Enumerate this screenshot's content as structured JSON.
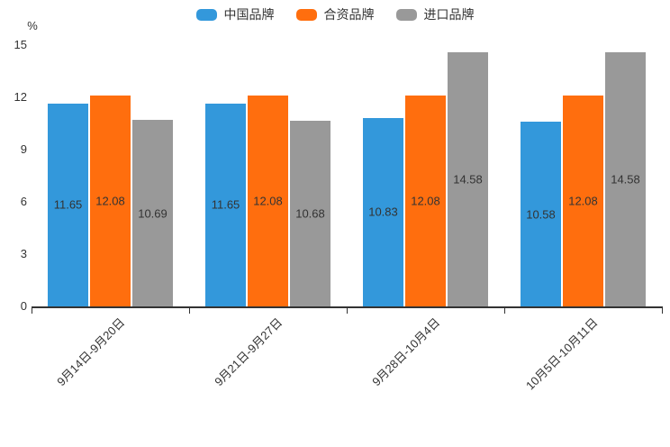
{
  "colors": {
    "series_blue": "#3398db",
    "series_orange": "#ff6e0e",
    "series_gray": "#999999",
    "text": "#333333",
    "axis": "#333333",
    "background": "#ffffff"
  },
  "chart_data": {
    "type": "bar",
    "title": "",
    "ylabel": "%",
    "xlabel": "",
    "ylim": [
      0,
      15
    ],
    "yticks": [
      0,
      3,
      6,
      9,
      12,
      15
    ],
    "ytick_labels": [
      "0",
      "3",
      "6",
      "9",
      "12",
      "15"
    ],
    "grid": false,
    "legend_position": "top",
    "categories": [
      "9月14日-9月20日",
      "9月21日-9月27日",
      "9月28日-10月4日",
      "10月5日-10月11日"
    ],
    "series": [
      {
        "name": "中国品牌",
        "color": "#3398db",
        "values": [
          11.65,
          11.65,
          10.83,
          10.58
        ]
      },
      {
        "name": "合资品牌",
        "color": "#ff6e0e",
        "values": [
          12.08,
          12.08,
          12.08,
          12.08
        ]
      },
      {
        "name": "进口品牌",
        "color": "#999999",
        "values": [
          10.69,
          10.68,
          14.58,
          14.58
        ]
      }
    ],
    "value_labels": [
      [
        "11.65",
        "12.08",
        "10.69"
      ],
      [
        "11.65",
        "12.08",
        "10.68"
      ],
      [
        "10.83",
        "12.08",
        "14.58"
      ],
      [
        "10.58",
        "12.08",
        "14.58"
      ]
    ]
  }
}
